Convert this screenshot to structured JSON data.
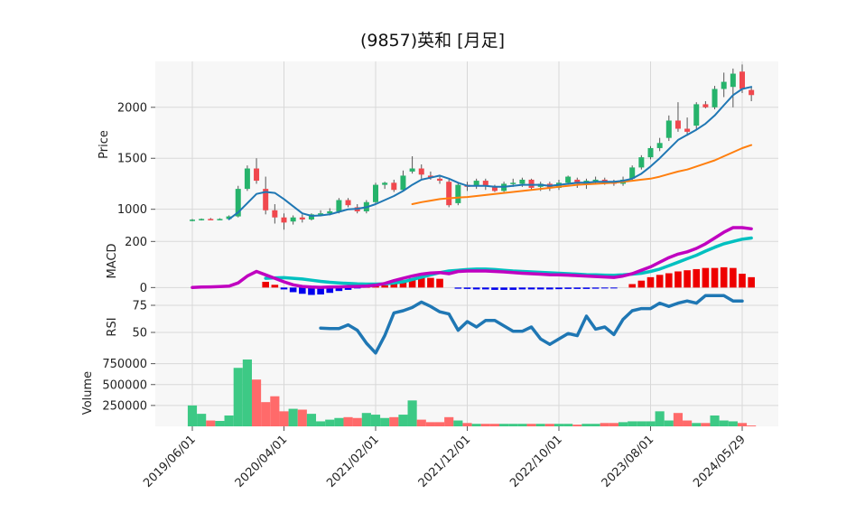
{
  "title": "(9857)英和  [月足]",
  "colors": {
    "up": "#26b36b",
    "down": "#f0484e",
    "ma_short": "#1f77b4",
    "ma_long": "#ff7f0e",
    "macd": "#c000c0",
    "signal": "#00c0c0",
    "hist_pos": "#ee0000",
    "hist_neg": "#0000ee",
    "rsi": "#1f77b4",
    "vol_up": "#3dc985",
    "vol_down": "#ff6a6a",
    "panel_bg": "#f7f7f7",
    "grid": "#d8d8d8"
  },
  "chart_data": {
    "type": "candlestick",
    "title": "(9857)英和  [月足]",
    "x_tick_labels": [
      "2019/06/01",
      "2020/04/01",
      "2021/02/01",
      "2021/12/01",
      "2022/10/01",
      "2023/08/01",
      "2024/05/29"
    ],
    "x_tick_index": [
      0,
      10,
      20,
      30,
      40,
      50,
      60
    ],
    "panels": {
      "price": {
        "ylabel": "Price",
        "ticks": [
          1000,
          1500,
          2000
        ],
        "ylim": [
          820,
          2450
        ]
      },
      "macd": {
        "ylabel": "MACD",
        "ticks": [
          0,
          200
        ],
        "ylim": [
          -30,
          260
        ]
      },
      "rsi": {
        "ylabel": "RSI",
        "ticks": [
          50,
          75
        ],
        "ylim": [
          25,
          85
        ]
      },
      "volume": {
        "ylabel": "Volume",
        "ticks": [
          250000,
          500000,
          750000
        ],
        "tick_labels": [
          "250000",
          "500000",
          "750000"
        ],
        "ylim": [
          0,
          800000
        ]
      }
    },
    "candles": [
      [
        888,
        905,
        882,
        898
      ],
      [
        898,
        910,
        890,
        905
      ],
      [
        905,
        915,
        895,
        902
      ],
      [
        902,
        912,
        895,
        905
      ],
      [
        905,
        940,
        900,
        930
      ],
      [
        930,
        1230,
        920,
        1200
      ],
      [
        1200,
        1430,
        1180,
        1400
      ],
      [
        1400,
        1500,
        1250,
        1280
      ],
      [
        1200,
        1320,
        950,
        990
      ],
      [
        990,
        1050,
        860,
        920
      ],
      [
        920,
        960,
        800,
        870
      ],
      [
        880,
        940,
        850,
        920
      ],
      [
        920,
        950,
        870,
        900
      ],
      [
        900,
        960,
        890,
        950
      ],
      [
        950,
        990,
        930,
        960
      ],
      [
        960,
        1010,
        940,
        980
      ],
      [
        980,
        1110,
        960,
        1090
      ],
      [
        1090,
        1110,
        1020,
        1040
      ],
      [
        1020,
        1050,
        960,
        980
      ],
      [
        980,
        1090,
        960,
        1070
      ],
      [
        1070,
        1260,
        1060,
        1240
      ],
      [
        1240,
        1270,
        1200,
        1260
      ],
      [
        1260,
        1290,
        1170,
        1190
      ],
      [
        1190,
        1380,
        1180,
        1330
      ],
      [
        1370,
        1520,
        1350,
        1400
      ],
      [
        1400,
        1440,
        1300,
        1340
      ],
      [
        1330,
        1370,
        1290,
        1310
      ],
      [
        1300,
        1320,
        1250,
        1280
      ],
      [
        1270,
        1290,
        1020,
        1040
      ],
      [
        1060,
        1260,
        1040,
        1240
      ],
      [
        1240,
        1270,
        1180,
        1220
      ],
      [
        1230,
        1300,
        1200,
        1280
      ],
      [
        1280,
        1300,
        1190,
        1230
      ],
      [
        1220,
        1240,
        1170,
        1180
      ],
      [
        1180,
        1270,
        1170,
        1250
      ],
      [
        1250,
        1300,
        1220,
        1260
      ],
      [
        1250,
        1310,
        1220,
        1290
      ],
      [
        1290,
        1300,
        1190,
        1210
      ],
      [
        1220,
        1270,
        1180,
        1250
      ],
      [
        1250,
        1270,
        1180,
        1210
      ],
      [
        1210,
        1290,
        1190,
        1260
      ],
      [
        1260,
        1330,
        1240,
        1320
      ],
      [
        1290,
        1310,
        1210,
        1250
      ],
      [
        1250,
        1300,
        1200,
        1280
      ],
      [
        1280,
        1320,
        1250,
        1290
      ],
      [
        1290,
        1310,
        1240,
        1280
      ],
      [
        1270,
        1290,
        1230,
        1250
      ],
      [
        1250,
        1320,
        1230,
        1290
      ],
      [
        1300,
        1430,
        1290,
        1410
      ],
      [
        1410,
        1530,
        1390,
        1510
      ],
      [
        1510,
        1620,
        1490,
        1600
      ],
      [
        1600,
        1700,
        1570,
        1650
      ],
      [
        1700,
        1920,
        1670,
        1870
      ],
      [
        1870,
        2050,
        1760,
        1790
      ],
      [
        1790,
        1900,
        1720,
        1760
      ],
      [
        1820,
        2050,
        1780,
        2030
      ],
      [
        2030,
        2060,
        1990,
        2000
      ],
      [
        2000,
        2210,
        1980,
        2180
      ],
      [
        2180,
        2340,
        2100,
        2250
      ],
      [
        2200,
        2380,
        2000,
        2330
      ],
      [
        2350,
        2420,
        2140,
        2180
      ],
      [
        2170,
        2200,
        2060,
        2120
      ]
    ],
    "ma_short": [
      null,
      null,
      null,
      null,
      902,
      970,
      1060,
      1150,
      1170,
      1160,
      1100,
      1030,
      960,
      935,
      940,
      950,
      975,
      1000,
      1005,
      1020,
      1050,
      1090,
      1130,
      1180,
      1240,
      1290,
      1310,
      1330,
      1300,
      1260,
      1230,
      1230,
      1230,
      1220,
      1220,
      1230,
      1240,
      1240,
      1240,
      1230,
      1240,
      1250,
      1260,
      1260,
      1270,
      1270,
      1270,
      1280,
      1300,
      1350,
      1420,
      1500,
      1590,
      1680,
      1730,
      1780,
      1840,
      1920,
      2020,
      2120,
      2180,
      2200
    ],
    "ma_long": [
      null,
      null,
      null,
      null,
      null,
      null,
      null,
      null,
      null,
      null,
      null,
      null,
      null,
      null,
      null,
      null,
      null,
      null,
      null,
      null,
      null,
      null,
      null,
      null,
      1050,
      1070,
      1085,
      1100,
      1108,
      1115,
      1120,
      1130,
      1140,
      1150,
      1160,
      1170,
      1180,
      1190,
      1200,
      1210,
      1220,
      1230,
      1240,
      1245,
      1250,
      1255,
      1260,
      1270,
      1280,
      1290,
      1300,
      1320,
      1345,
      1370,
      1390,
      1420,
      1450,
      1480,
      1520,
      1560,
      1600,
      1630
    ],
    "macd": [
      0,
      2,
      3,
      4,
      6,
      20,
      50,
      70,
      55,
      40,
      25,
      12,
      5,
      2,
      1,
      2,
      3,
      4,
      5,
      6,
      10,
      18,
      30,
      40,
      50,
      58,
      63,
      65,
      60,
      70,
      72,
      72,
      72,
      70,
      68,
      65,
      62,
      60,
      58,
      56,
      55,
      54,
      52,
      50,
      48,
      46,
      44,
      50,
      60,
      75,
      90,
      110,
      130,
      145,
      155,
      170,
      190,
      215,
      240,
      260,
      260,
      255
    ],
    "signal": [
      null,
      null,
      null,
      null,
      null,
      null,
      null,
      null,
      40,
      42,
      43,
      40,
      37,
      32,
      27,
      23,
      20,
      18,
      16,
      15,
      15,
      16,
      20,
      25,
      35,
      45,
      55,
      65,
      72,
      75,
      78,
      80,
      80,
      78,
      75,
      72,
      70,
      68,
      66,
      64,
      62,
      60,
      58,
      56,
      55,
      54,
      53,
      55,
      58,
      62,
      70,
      80,
      95,
      110,
      125,
      140,
      158,
      175,
      190,
      200,
      210,
      215
    ],
    "hist": [
      null,
      null,
      null,
      null,
      null,
      null,
      null,
      null,
      25,
      12,
      -8,
      -20,
      -27,
      -32,
      -30,
      -23,
      -15,
      -10,
      -3,
      3,
      6,
      10,
      20,
      32,
      40,
      42,
      42,
      38,
      0,
      -5,
      -6,
      -8,
      -8,
      -10,
      -10,
      -10,
      -8,
      -8,
      -8,
      -8,
      -7,
      -6,
      -6,
      -6,
      -5,
      -4,
      -3,
      0,
      15,
      30,
      45,
      55,
      62,
      70,
      75,
      80,
      85,
      85,
      88,
      85,
      60,
      45
    ],
    "rsi": [
      null,
      null,
      null,
      null,
      null,
      null,
      null,
      null,
      null,
      null,
      null,
      null,
      null,
      null,
      54,
      53.5,
      53.5,
      57,
      52,
      40,
      31,
      47,
      68,
      70,
      73,
      78,
      74,
      69,
      67,
      52,
      60,
      55,
      61,
      61,
      56,
      51,
      51,
      55,
      44,
      39,
      44,
      49,
      47,
      65,
      53,
      55,
      48,
      62,
      70,
      72,
      72,
      77,
      74,
      77,
      79,
      77,
      84,
      84,
      84,
      79,
      79
    ],
    "volume": [
      250000,
      150000,
      70000,
      65000,
      130000,
      700000,
      800000,
      560000,
      290000,
      360000,
      180000,
      210000,
      200000,
      150000,
      60000,
      80000,
      100000,
      110000,
      100000,
      160000,
      140000,
      100000,
      110000,
      140000,
      310000,
      80000,
      50000,
      50000,
      110000,
      70000,
      40000,
      30000,
      30000,
      30000,
      30000,
      30000,
      30000,
      30000,
      30000,
      30000,
      30000,
      30000,
      20000,
      30000,
      30000,
      40000,
      40000,
      50000,
      60000,
      60000,
      60000,
      180000,
      70000,
      160000,
      70000,
      40000,
      40000,
      130000,
      70000,
      60000,
      40000,
      10000
    ]
  }
}
